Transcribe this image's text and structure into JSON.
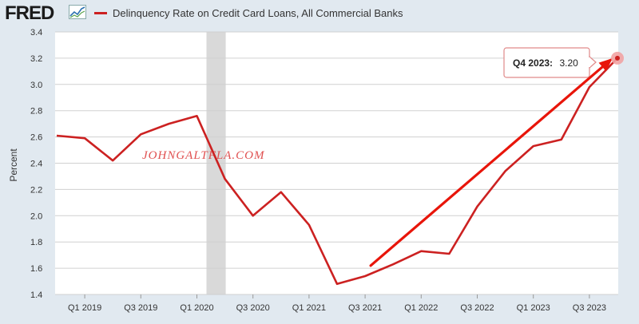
{
  "header": {
    "logo_text": "FRED",
    "logo_icon": "line-chart-icon",
    "legend_label": "Delinquency Rate on Credit Card Loans, All Commercial Banks",
    "legend_color": "#cc2121"
  },
  "watermark": "JOHNGALTFLA.COM",
  "tooltip": {
    "label": "Q4 2023:",
    "value": "3.20"
  },
  "colors": {
    "line": "#cc2121",
    "recession": "#d9d9d9",
    "plot_bg": "#ffffff",
    "page_bg": "#e1e9f0",
    "grid": "#d0d0d0",
    "arrow": "#e8150a"
  },
  "chart_data": {
    "type": "line",
    "title": "",
    "xlabel": "",
    "ylabel": "Percent",
    "ylim": [
      1.4,
      3.4
    ],
    "y_ticks": [
      "1.4",
      "1.6",
      "1.8",
      "2.0",
      "2.2",
      "2.4",
      "2.6",
      "2.8",
      "3.0",
      "3.2",
      "3.4"
    ],
    "x_ticks": [
      "Q1 2019",
      "Q3 2019",
      "Q1 2020",
      "Q3 2020",
      "Q1 2021",
      "Q3 2021",
      "Q1 2022",
      "Q3 2022",
      "Q1 2023",
      "Q3 2023"
    ],
    "x": [
      "Q4 2018",
      "Q1 2019",
      "Q2 2019",
      "Q3 2019",
      "Q4 2019",
      "Q1 2020",
      "Q2 2020",
      "Q3 2020",
      "Q4 2020",
      "Q1 2021",
      "Q2 2021",
      "Q3 2021",
      "Q4 2021",
      "Q1 2022",
      "Q2 2022",
      "Q3 2022",
      "Q4 2022",
      "Q1 2023",
      "Q2 2023",
      "Q3 2023",
      "Q4 2023"
    ],
    "series": [
      {
        "name": "Delinquency Rate on Credit Card Loans, All Commercial Banks",
        "values": [
          2.61,
          2.59,
          2.42,
          2.62,
          2.7,
          2.76,
          2.28,
          2.0,
          2.18,
          1.93,
          1.48,
          1.54,
          1.63,
          1.73,
          1.71,
          2.07,
          2.34,
          2.53,
          2.58,
          2.98,
          3.2
        ]
      }
    ],
    "recession": [
      "Q1 2020",
      "Q2 2020"
    ],
    "annotation_arrow": {
      "from": [
        "Q3 2021",
        1.62
      ],
      "to": [
        "Q4 2023",
        3.2
      ]
    },
    "grid": true,
    "legend": "top-left"
  }
}
